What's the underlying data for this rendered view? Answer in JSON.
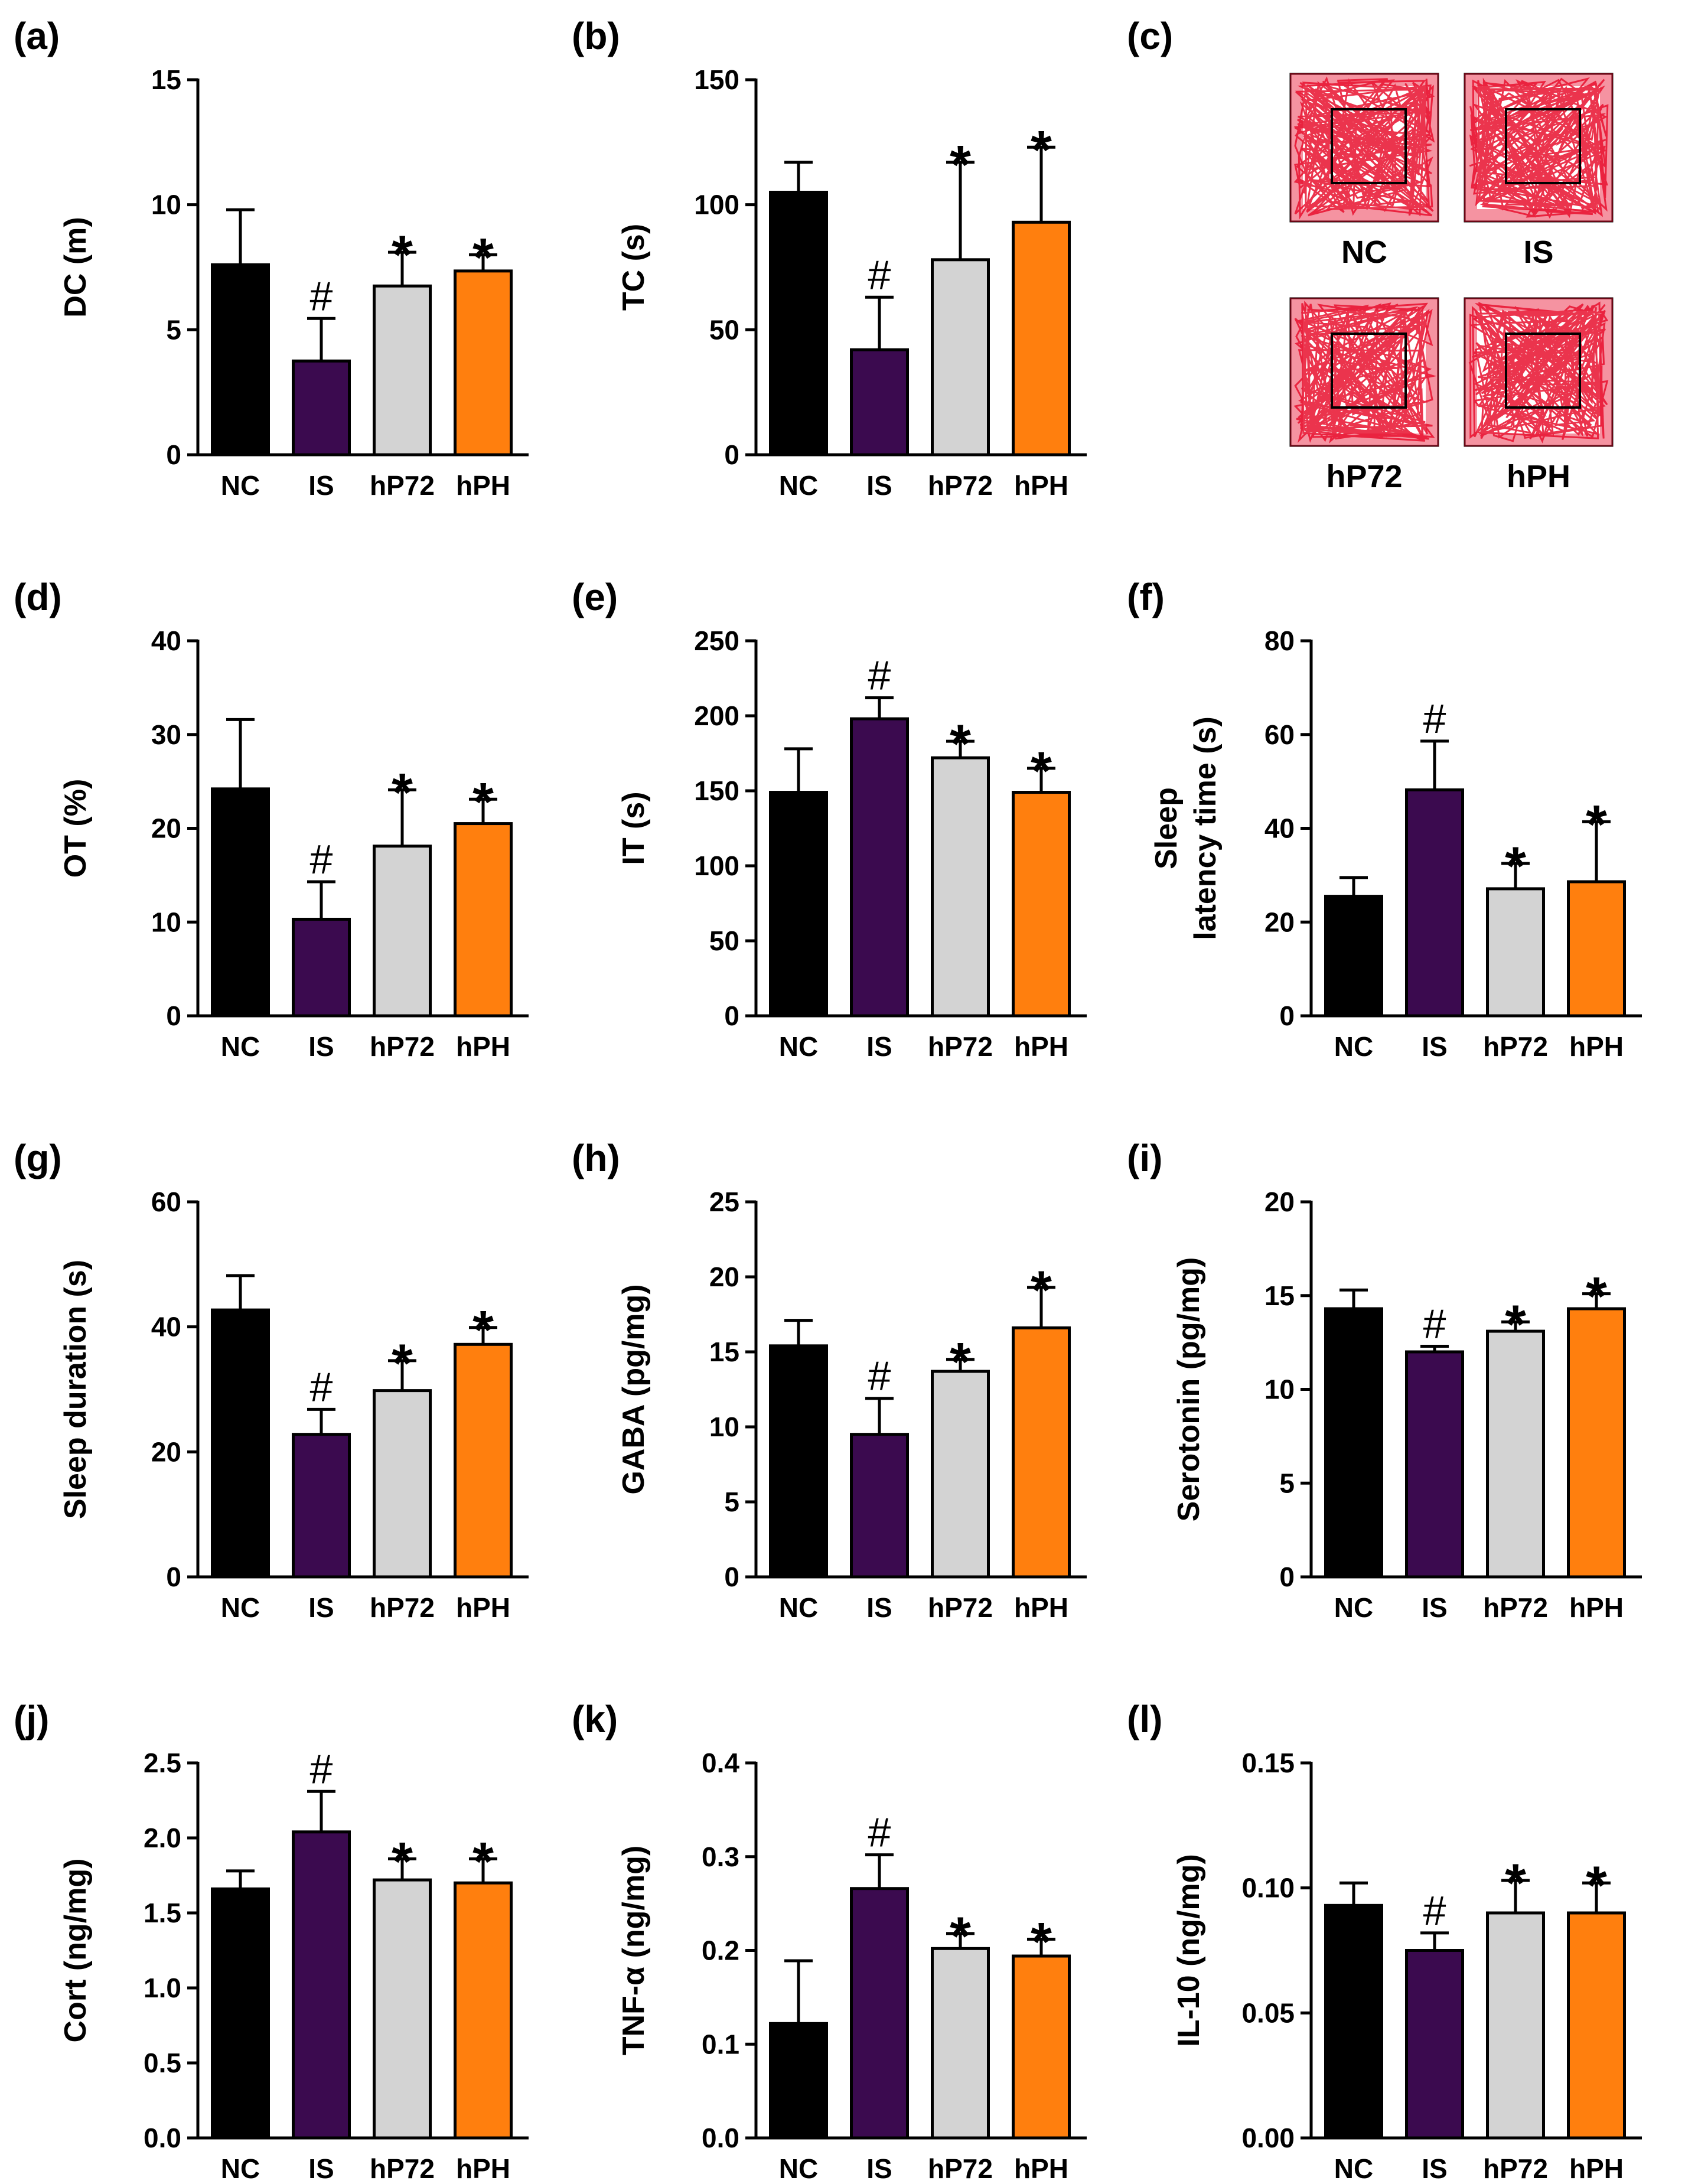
{
  "chart_data": [
    {
      "id": "a",
      "panel_label": "(a)",
      "type": "bar",
      "categories": [
        "NC",
        "IS",
        "hP72",
        "hPH"
      ],
      "values": [
        7.6,
        3.75,
        6.75,
        7.35
      ],
      "errors": [
        2.2,
        1.7,
        1.35,
        0.65
      ],
      "significance": [
        "",
        "#",
        "*",
        "*"
      ],
      "ylabel": [
        "DC (m)"
      ],
      "ylim": [
        0,
        15
      ],
      "yticks": [
        0,
        5,
        10,
        15
      ],
      "ytick_labels": [
        "0",
        "5",
        "10",
        "15"
      ]
    },
    {
      "id": "b",
      "panel_label": "(b)",
      "type": "bar",
      "categories": [
        "NC",
        "IS",
        "hP72",
        "hPH"
      ],
      "values": [
        105,
        42,
        78,
        93
      ],
      "errors": [
        12,
        21,
        39,
        30
      ],
      "significance": [
        "",
        "#",
        "*",
        "*"
      ],
      "ylabel": [
        "TC (s)"
      ],
      "ylim": [
        0,
        150
      ],
      "yticks": [
        0,
        50,
        100,
        150
      ],
      "ytick_labels": [
        "0",
        "50",
        "100",
        "150"
      ]
    },
    {
      "id": "d",
      "panel_label": "(d)",
      "type": "bar",
      "categories": [
        "NC",
        "IS",
        "hP72",
        "hPH"
      ],
      "values": [
        24.2,
        10.3,
        18.1,
        20.5
      ],
      "errors": [
        7.4,
        4.0,
        6.0,
        2.6
      ],
      "significance": [
        "",
        "#",
        "*",
        "*"
      ],
      "ylabel": [
        "OT (%)"
      ],
      "ylim": [
        0,
        40
      ],
      "yticks": [
        0,
        10,
        20,
        30,
        40
      ],
      "ytick_labels": [
        "0",
        "10",
        "20",
        "30",
        "40"
      ]
    },
    {
      "id": "e",
      "panel_label": "(e)",
      "type": "bar",
      "categories": [
        "NC",
        "IS",
        "hP72",
        "hPH"
      ],
      "values": [
        149,
        198,
        172,
        149
      ],
      "errors": [
        29,
        14,
        11,
        16
      ],
      "significance": [
        "",
        "#",
        "*",
        "*"
      ],
      "ylabel": [
        "IT (s)"
      ],
      "ylim": [
        0,
        250
      ],
      "yticks": [
        0,
        50,
        100,
        150,
        200,
        250
      ],
      "ytick_labels": [
        "0",
        "50",
        "100",
        "150",
        "200",
        "250"
      ]
    },
    {
      "id": "f",
      "panel_label": "(f)",
      "type": "bar",
      "categories": [
        "NC",
        "IS",
        "hP72",
        "hPH"
      ],
      "values": [
        25.5,
        48.2,
        27.1,
        28.6
      ],
      "errors": [
        4.0,
        10.4,
        5.4,
        12.8
      ],
      "significance": [
        "",
        "#",
        "*",
        "*"
      ],
      "ylabel": [
        "Sleep",
        "latency time (s)"
      ],
      "ylim": [
        0,
        80
      ],
      "yticks": [
        0,
        20,
        40,
        60,
        80
      ],
      "ytick_labels": [
        "0",
        "20",
        "40",
        "60",
        "80"
      ]
    },
    {
      "id": "g",
      "panel_label": "(g)",
      "type": "bar",
      "categories": [
        "NC",
        "IS",
        "hP72",
        "hPH"
      ],
      "values": [
        42.7,
        22.8,
        29.8,
        37.2
      ],
      "errors": [
        5.5,
        4.0,
        4.8,
        2.7
      ],
      "significance": [
        "",
        "#",
        "*",
        "*"
      ],
      "ylabel": [
        "Sleep duration (s)"
      ],
      "ylim": [
        0,
        60
      ],
      "yticks": [
        0,
        20,
        40,
        60
      ],
      "ytick_labels": [
        "0",
        "20",
        "40",
        "60"
      ]
    },
    {
      "id": "h",
      "panel_label": "(h)",
      "type": "bar",
      "categories": [
        "NC",
        "IS",
        "hP72",
        "hPH"
      ],
      "values": [
        15.4,
        9.5,
        13.7,
        16.6
      ],
      "errors": [
        1.7,
        2.4,
        0.8,
        2.7
      ],
      "significance": [
        "",
        "#",
        "*",
        "*"
      ],
      "ylabel": [
        "GABA (pg/mg)"
      ],
      "ylim": [
        0,
        25
      ],
      "yticks": [
        0,
        5,
        10,
        15,
        20,
        25
      ],
      "ytick_labels": [
        "0",
        "5",
        "10",
        "15",
        "20",
        "25"
      ]
    },
    {
      "id": "i",
      "panel_label": "(i)",
      "type": "bar",
      "categories": [
        "NC",
        "IS",
        "hP72",
        "hPH"
      ],
      "values": [
        14.3,
        12.0,
        13.1,
        14.3
      ],
      "errors": [
        1.0,
        0.3,
        0.5,
        0.8
      ],
      "significance": [
        "",
        "#",
        "*",
        "*"
      ],
      "ylabel": [
        "Serotonin (pg/mg)"
      ],
      "ylim": [
        0,
        20
      ],
      "yticks": [
        0,
        5,
        10,
        15,
        20
      ],
      "ytick_labels": [
        "0",
        "5",
        "10",
        "15",
        "20"
      ]
    },
    {
      "id": "j",
      "panel_label": "(j)",
      "type": "bar",
      "categories": [
        "NC",
        "IS",
        "hP72",
        "hPH"
      ],
      "values": [
        1.66,
        2.04,
        1.72,
        1.7
      ],
      "errors": [
        0.12,
        0.27,
        0.14,
        0.16
      ],
      "significance": [
        "",
        "#",
        "*",
        "*"
      ],
      "ylabel": [
        "Cort (ng/mg)"
      ],
      "ylim": [
        0,
        2.5
      ],
      "yticks": [
        0,
        0.5,
        1.0,
        1.5,
        2.0,
        2.5
      ],
      "ytick_labels": [
        "0.0",
        "0.5",
        "1.0",
        "1.5",
        "2.0",
        "2.5"
      ]
    },
    {
      "id": "k",
      "panel_label": "(k)",
      "type": "bar",
      "categories": [
        "NC",
        "IS",
        "hP72",
        "hPH"
      ],
      "values": [
        0.122,
        0.266,
        0.202,
        0.194
      ],
      "errors": [
        0.067,
        0.036,
        0.016,
        0.018
      ],
      "significance": [
        "",
        "#",
        "*",
        "*"
      ],
      "ylabel": [
        "TNF-α (ng/mg)"
      ],
      "ylim": [
        0,
        0.4
      ],
      "yticks": [
        0,
        0.1,
        0.2,
        0.3,
        0.4
      ],
      "ytick_labels": [
        "0.0",
        "0.1",
        "0.2",
        "0.3",
        "0.4"
      ]
    },
    {
      "id": "l",
      "panel_label": "(l)",
      "type": "bar",
      "categories": [
        "NC",
        "IS",
        "hP72",
        "hPH"
      ],
      "values": [
        0.093,
        0.075,
        0.09,
        0.09
      ],
      "errors": [
        0.009,
        0.007,
        0.013,
        0.012
      ],
      "significance": [
        "",
        "#",
        "*",
        "*"
      ],
      "ylabel": [
        "IL-10 (ng/mg)"
      ],
      "ylim": [
        0,
        0.15
      ],
      "yticks": [
        0,
        0.05,
        0.1,
        0.15
      ],
      "ytick_labels": [
        "0.00",
        "0.05",
        "0.10",
        "0.15"
      ]
    }
  ],
  "colors": {
    "NC": "#000000",
    "IS": "#3b0a4f",
    "hP72": "#d3d3d3",
    "hPH": "#ff7f0e"
  },
  "track_panel": {
    "panel_label": "(c)",
    "labels": [
      "NC",
      "IS",
      "hP72",
      "hPH"
    ],
    "track_color": "#e8102e"
  }
}
